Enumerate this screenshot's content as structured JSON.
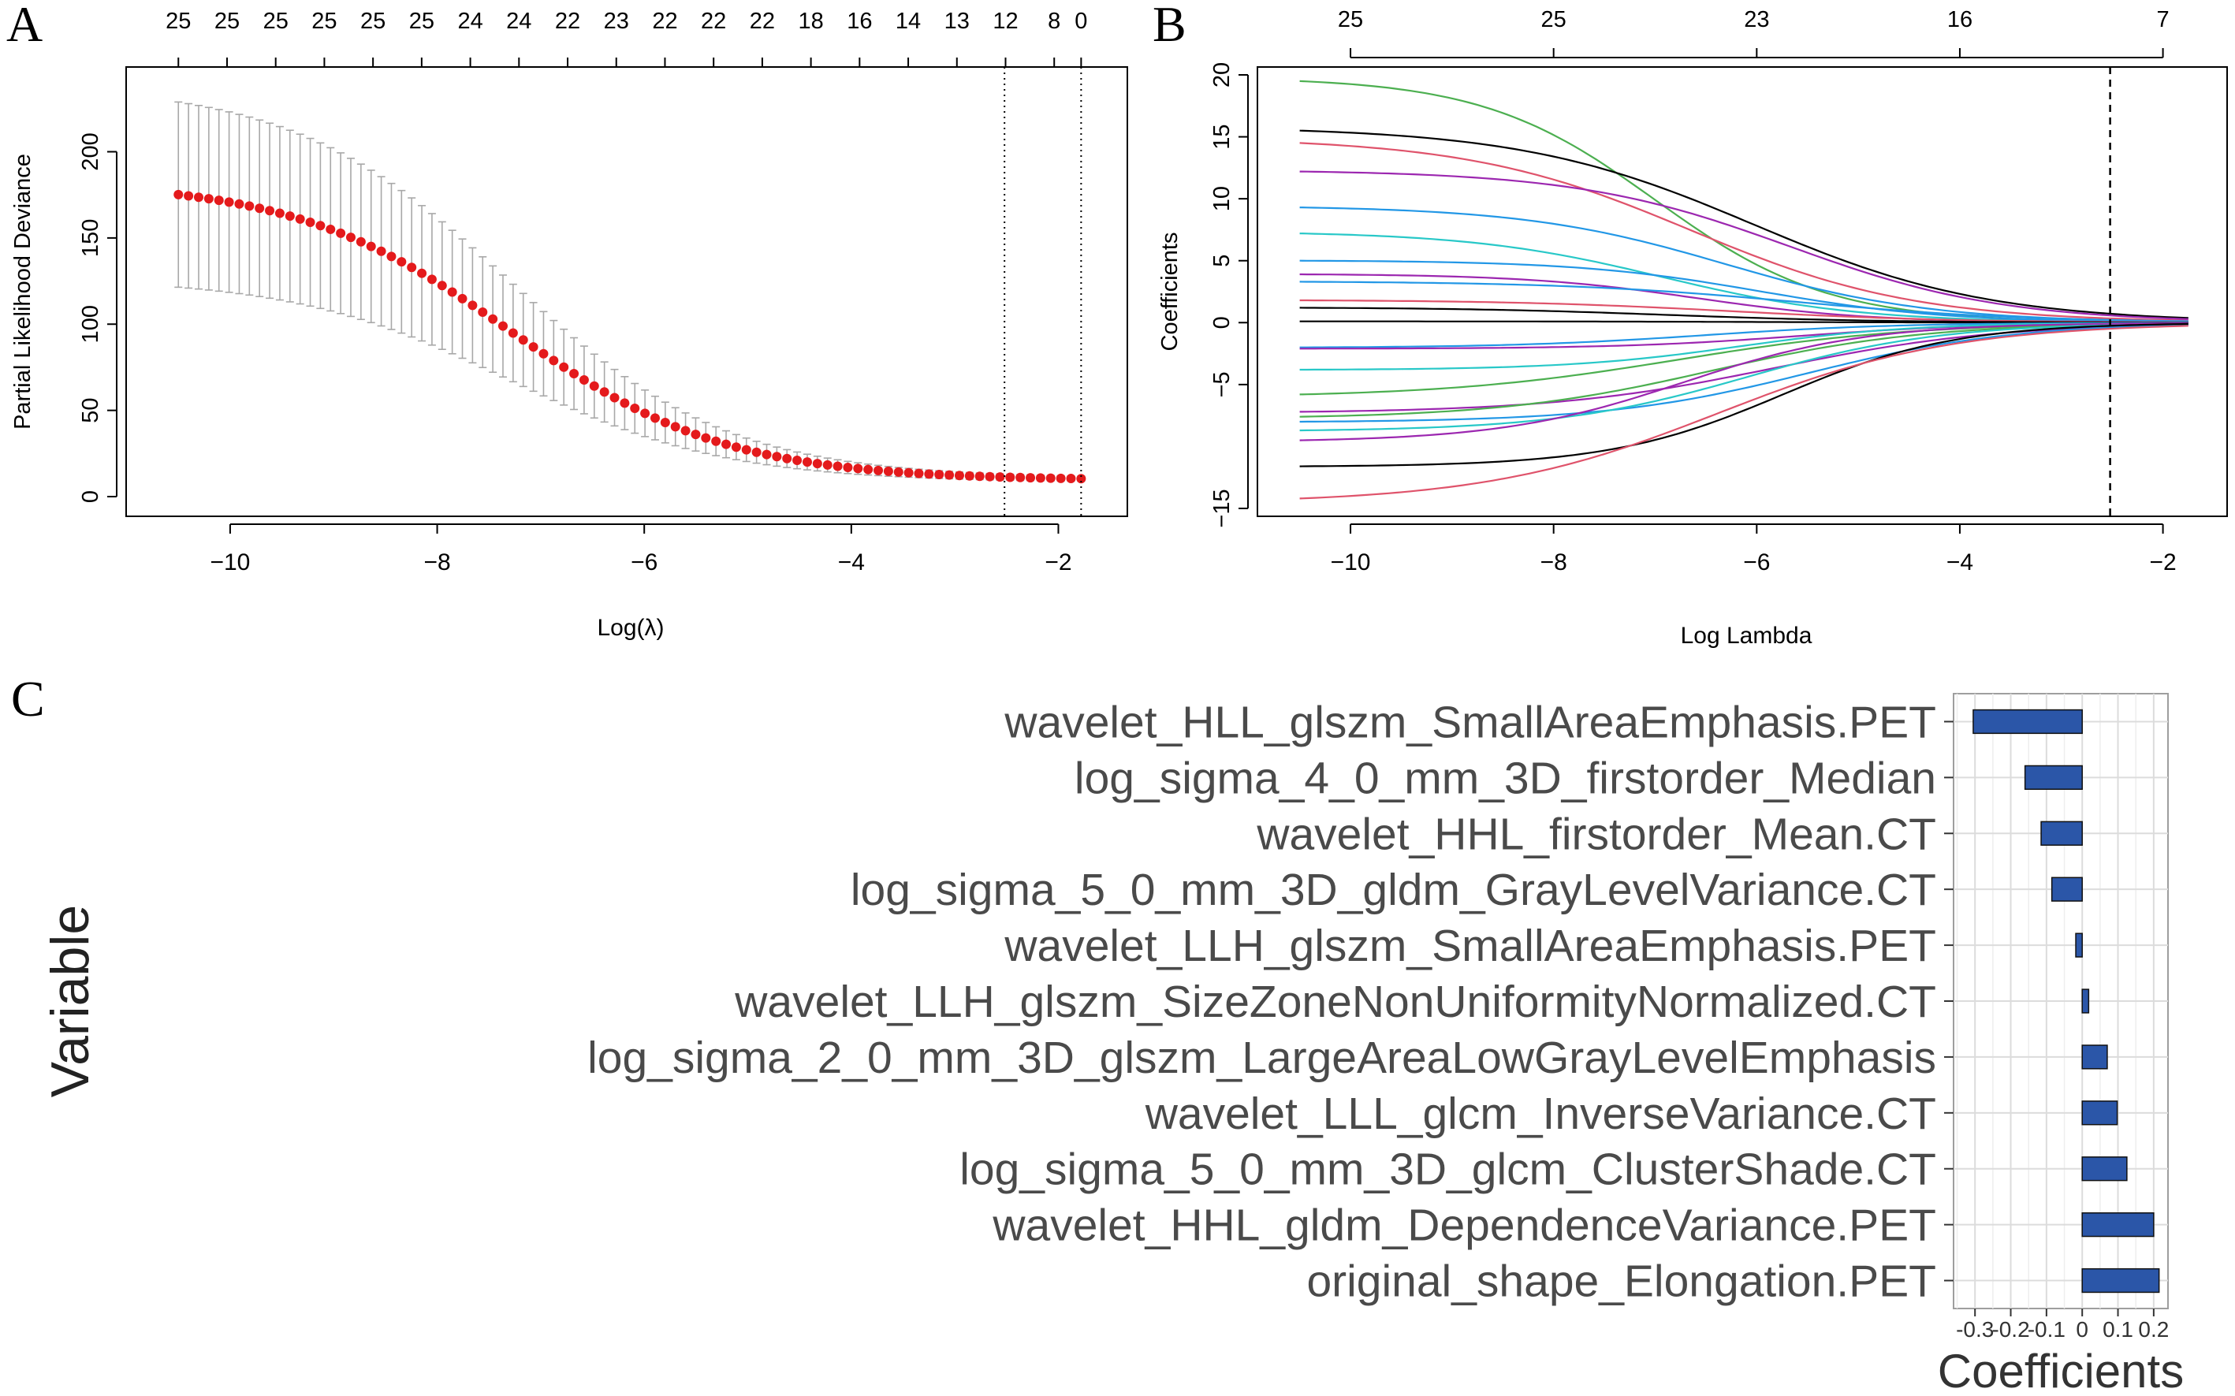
{
  "chart_data": [
    {
      "panel": "A",
      "type": "scatter",
      "panel_label": "A",
      "xlabel": "Log(λ)",
      "ylabel": "Partial Likelihood Deviance",
      "xlim": [
        -10.7,
        -1.6
      ],
      "ylim": [
        0,
        240
      ],
      "x_ticks": [
        -10,
        -8,
        -6,
        -4,
        -2
      ],
      "x_tick_labels": [
        "−10",
        "−8",
        "−6",
        "−4",
        "−2"
      ],
      "y_ticks": [
        0,
        50,
        100,
        150,
        200
      ],
      "y_tick_labels": [
        "0",
        "50",
        "100",
        "150",
        "200"
      ],
      "top_ticks_x": [
        -10.5,
        -10.03,
        -9.56,
        -9.09,
        -8.62,
        -8.15,
        -7.68,
        -7.21,
        -6.74,
        -6.27,
        -5.8,
        -5.33,
        -4.86,
        -4.39,
        -3.92,
        -3.45,
        -2.98,
        -2.51,
        -2.04,
        -1.78
      ],
      "top_labels": [
        "25",
        "25",
        "25",
        "25",
        "25",
        "25",
        "24",
        "24",
        "22",
        "23",
        "22",
        "22",
        "22",
        "18",
        "16",
        "14",
        "13",
        "12",
        "8",
        "0"
      ],
      "lambda_min": -2.52,
      "lambda_1se": -1.78,
      "grid": false,
      "series": [
        {
          "name": "mean deviance",
          "x_from": -10.5,
          "x_to": -1.78,
          "n_points": 90,
          "mean_high": 183,
          "mean_low": 9.5,
          "center": -7.3,
          "scale": 1.05,
          "upper_offset": 55,
          "lower_offset": 55
        }
      ]
    },
    {
      "panel": "B",
      "type": "line",
      "panel_label": "B",
      "xlabel": "Log Lambda",
      "ylabel": "Coefficients",
      "xlim": [
        -10.8,
        -1.5
      ],
      "ylim": [
        -15,
        20
      ],
      "x_ticks": [
        -10,
        -8,
        -6,
        -4,
        -2
      ],
      "x_tick_labels": [
        "−10",
        "−8",
        "−6",
        "−4",
        "−2"
      ],
      "y_ticks": [
        -15,
        -5,
        0,
        5,
        10,
        15,
        20
      ],
      "y_tick_labels": [
        "−15",
        "−5",
        "0",
        "5",
        "10",
        "15",
        "20"
      ],
      "top_ticks_x": [
        -10,
        -8,
        -6,
        -4,
        -2
      ],
      "top_labels": [
        "25",
        "25",
        "23",
        "16",
        "7"
      ],
      "cutoff": -2.52,
      "x_start": -10.5,
      "x_end": -1.75,
      "grid": false,
      "series": [
        {
          "name": "coef-1",
          "start": 19.5,
          "color": "#4caf50"
        },
        {
          "name": "coef-2",
          "start": 15.5,
          "color": "#000000"
        },
        {
          "name": "coef-3",
          "start": 14.5,
          "color": "#df536b"
        },
        {
          "name": "coef-4",
          "start": 12.2,
          "color": "#9c27b0"
        },
        {
          "name": "coef-5",
          "start": 9.3,
          "color": "#2297e6"
        },
        {
          "name": "coef-6",
          "start": 7.2,
          "color": "#28c8c8"
        },
        {
          "name": "coef-7",
          "start": 5.0,
          "color": "#2297e6"
        },
        {
          "name": "coef-8",
          "start": 3.9,
          "color": "#9c27b0"
        },
        {
          "name": "coef-9",
          "start": 3.3,
          "color": "#2297e6"
        },
        {
          "name": "coef-10",
          "start": 1.8,
          "color": "#df536b"
        },
        {
          "name": "coef-11",
          "start": 1.2,
          "color": "#000000"
        },
        {
          "name": "coef-12",
          "start": 0.1,
          "color": "#000000"
        },
        {
          "name": "coef-13",
          "start": -2.0,
          "color": "#2297e6"
        },
        {
          "name": "coef-14",
          "start": -2.1,
          "color": "#9c27b0"
        },
        {
          "name": "coef-15",
          "start": -3.8,
          "color": "#28c8c8"
        },
        {
          "name": "coef-16",
          "start": -5.8,
          "color": "#4caf50"
        },
        {
          "name": "coef-17",
          "start": -7.2,
          "color": "#9c27b0"
        },
        {
          "name": "coef-18",
          "start": -7.6,
          "color": "#4caf50"
        },
        {
          "name": "coef-19",
          "start": -8.0,
          "color": "#2297e6"
        },
        {
          "name": "coef-20",
          "start": -8.7,
          "color": "#28c8c8"
        },
        {
          "name": "coef-21",
          "start": -9.5,
          "color": "#9c27b0"
        },
        {
          "name": "coef-22",
          "start": -11.6,
          "color": "#000000"
        },
        {
          "name": "coef-23",
          "start": -14.2,
          "color": "#df536b"
        }
      ]
    },
    {
      "panel": "C",
      "type": "bar",
      "orientation": "horizontal",
      "panel_label": "C",
      "xlabel": "Coefficients",
      "ylabel": "Variable",
      "xlim": [
        -0.36,
        0.24
      ],
      "x_ticks": [
        -0.3,
        -0.2,
        -0.1,
        0,
        0.1,
        0.2
      ],
      "x_tick_labels": [
        "-0.3",
        "-0.2",
        "-0.1",
        "0",
        "0.1",
        "0.2"
      ],
      "bar_color": "#2b56a8",
      "grid": true,
      "categories": [
        "wavelet_HLL_glszm_SmallAreaEmphasis.PET",
        "log_sigma_4_0_mm_3D_firstorder_Median",
        "wavelet_HHL_firstorder_Mean.CT",
        "log_sigma_5_0_mm_3D_gldm_GrayLevelVariance.CT",
        "wavelet_LLH_glszm_SmallAreaEmphasis.PET",
        "wavelet_LLH_glszm_SizeZoneNonUniformityNormalized.CT",
        "log_sigma_2_0_mm_3D_glszm_LargeAreaLowGrayLevelEmphasis",
        "wavelet_LLL_glcm_InverseVariance.CT",
        "log_sigma_5_0_mm_3D_glcm_ClusterShade.CT",
        "wavelet_HHL_gldm_DependenceVariance.PET",
        "original_shape_Elongation.PET"
      ],
      "values": [
        -0.305,
        -0.16,
        -0.115,
        -0.085,
        -0.018,
        0.018,
        0.07,
        0.098,
        0.125,
        0.2,
        0.215
      ]
    }
  ]
}
